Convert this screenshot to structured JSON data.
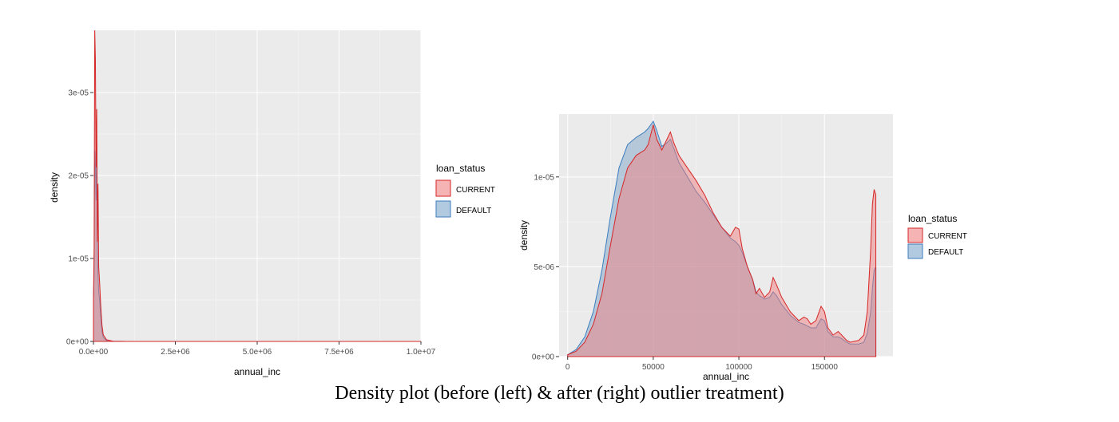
{
  "caption": "Density plot (before (left) & after (right) outlier treatment)",
  "colors": {
    "panel_bg": "#ebebeb",
    "grid_major": "#ffffff",
    "current_fill": "#f08080",
    "current_line": "#d62728",
    "default_fill": "#7fa6c9",
    "default_line": "#3b7dbf"
  },
  "chart_data": [
    {
      "type": "area",
      "xlabel": "annual_inc",
      "ylabel": "density",
      "xlim": [
        0,
        10000000
      ],
      "ylim": [
        0,
        3.75e-05
      ],
      "x_ticks": [
        0,
        2500000,
        5000000,
        7500000,
        10000000
      ],
      "x_tick_labels": [
        "0.0e+00",
        "2.5e+06",
        "5.0e+06",
        "7.5e+06",
        "1.0e+07"
      ],
      "y_ticks": [
        0,
        1e-05,
        2e-05,
        3e-05
      ],
      "y_tick_labels": [
        "0e+00",
        "1e-05",
        "2e-05",
        "3e-05"
      ],
      "grid": true,
      "legend": {
        "title": "loan_status",
        "position": "right",
        "entries": [
          "CURRENT",
          "DEFAULT"
        ]
      },
      "series": [
        {
          "name": "CURRENT",
          "x": [
            0,
            20000,
            40000,
            60000,
            80000,
            100000,
            120000,
            140000,
            160000,
            190000,
            220000,
            260000,
            300000,
            400000,
            600000,
            1000000,
            10000000
          ],
          "y": [
            5e-06,
            1.1e-05,
            3.75e-05,
            3.4e-05,
            2.1e-05,
            2.8e-05,
            1.2e-05,
            1.9e-05,
            9e-06,
            7e-06,
            4.5e-06,
            2e-06,
            8e-07,
            2e-07,
            3e-08,
            0.0,
            0.0
          ]
        },
        {
          "name": "DEFAULT",
          "x": [
            0,
            20000,
            40000,
            60000,
            80000,
            100000,
            120000,
            140000,
            160000,
            190000,
            220000,
            260000,
            300000,
            400000,
            600000,
            1000000,
            10000000
          ],
          "y": [
            5e-06,
            8e-06,
            2.3e-05,
            2.1e-05,
            1.7e-05,
            2.4e-05,
            1.1e-05,
            8e-06,
            6e-06,
            5e-06,
            3e-06,
            1.2e-06,
            5e-07,
            1e-07,
            2e-08,
            0.0,
            0.0
          ]
        }
      ]
    },
    {
      "type": "area",
      "xlabel": "annual_inc",
      "ylabel": "density",
      "xlim": [
        -5000,
        190000
      ],
      "ylim": [
        0,
        1.35e-05
      ],
      "x_ticks": [
        0,
        50000,
        100000,
        150000
      ],
      "x_tick_labels": [
        "0",
        "50000",
        "100000",
        "150000"
      ],
      "y_ticks": [
        0,
        5e-06,
        1e-05
      ],
      "y_tick_labels": [
        "0e+00",
        "5e-06",
        "1e-05"
      ],
      "grid": true,
      "legend": {
        "title": "loan_status",
        "position": "right",
        "entries": [
          "CURRENT",
          "DEFAULT"
        ]
      },
      "series": [
        {
          "name": "CURRENT",
          "x": [
            0,
            5000,
            10000,
            15000,
            20000,
            25000,
            30000,
            35000,
            40000,
            45000,
            47000,
            50000,
            52000,
            55000,
            58000,
            60000,
            62000,
            65000,
            70000,
            75000,
            80000,
            85000,
            90000,
            95000,
            98000,
            100000,
            102000,
            105000,
            108000,
            110000,
            112000,
            115000,
            118000,
            120000,
            122000,
            125000,
            130000,
            135000,
            138000,
            140000,
            142000,
            145000,
            148000,
            150000,
            152000,
            155000,
            158000,
            160000,
            163000,
            165000,
            170000,
            173000,
            175000,
            177000,
            178000,
            179000,
            180000
          ],
          "y": [
            1e-07,
            3e-07,
            8e-07,
            1.8e-06,
            3.5e-06,
            6.2e-06,
            8.8e-06,
            1.05e-05,
            1.12e-05,
            1.15e-05,
            1.18e-05,
            1.29e-05,
            1.21e-05,
            1.15e-05,
            1.21e-05,
            1.25e-05,
            1.19e-05,
            1.12e-05,
            1.05e-05,
            9.8e-06,
            9e-06,
            8e-06,
            7.2e-06,
            6.7e-06,
            7.2e-06,
            7.1e-06,
            6e-06,
            5e-06,
            4.3e-06,
            3.5e-06,
            3.8e-06,
            3.3e-06,
            3.6e-06,
            4.4e-06,
            4e-06,
            3.3e-06,
            2.5e-06,
            2e-06,
            2.2e-06,
            2.1e-06,
            1.8e-06,
            2e-06,
            2.8e-06,
            2.5e-06,
            1.6e-06,
            1.2e-06,
            1.4e-06,
            1.2e-06,
            9e-07,
            8e-07,
            9e-07,
            1.2e-06,
            2.5e-06,
            6e-06,
            8.5e-06,
            9.3e-06,
            9e-06
          ]
        },
        {
          "name": "DEFAULT",
          "x": [
            0,
            5000,
            10000,
            15000,
            20000,
            25000,
            30000,
            35000,
            40000,
            45000,
            47000,
            50000,
            52000,
            55000,
            58000,
            60000,
            62000,
            65000,
            70000,
            75000,
            80000,
            85000,
            90000,
            95000,
            98000,
            100000,
            102000,
            105000,
            108000,
            110000,
            112000,
            115000,
            118000,
            120000,
            122000,
            125000,
            130000,
            135000,
            138000,
            140000,
            142000,
            145000,
            148000,
            150000,
            152000,
            155000,
            158000,
            160000,
            163000,
            165000,
            170000,
            173000,
            175000,
            177000,
            178000,
            179000,
            180000
          ],
          "y": [
            1e-07,
            4e-07,
            1.1e-06,
            2.5e-06,
            4.8e-06,
            7.8e-06,
            1.05e-05,
            1.18e-05,
            1.22e-05,
            1.25e-05,
            1.27e-05,
            1.31e-05,
            1.26e-05,
            1.17e-05,
            1.19e-05,
            1.21e-05,
            1.16e-05,
            1.08e-05,
            1e-05,
            9.2e-06,
            8.6e-06,
            7.9e-06,
            7.2e-06,
            6.6e-06,
            6.4e-06,
            6.2e-06,
            5.8e-06,
            5e-06,
            4.3e-06,
            3.6e-06,
            3.4e-06,
            3.2e-06,
            3.3e-06,
            3.6e-06,
            3.4e-06,
            2.9e-06,
            2.3e-06,
            1.9e-06,
            1.8e-06,
            1.7e-06,
            1.6e-06,
            1.6e-06,
            2.1e-06,
            2e-06,
            1.4e-06,
            1.1e-06,
            1.1e-06,
            1e-06,
            8e-07,
            7e-07,
            7e-07,
            8e-07,
            1.3e-06,
            2.5e-06,
            3.8e-06,
            4.8e-06,
            5e-06
          ]
        }
      ]
    }
  ]
}
